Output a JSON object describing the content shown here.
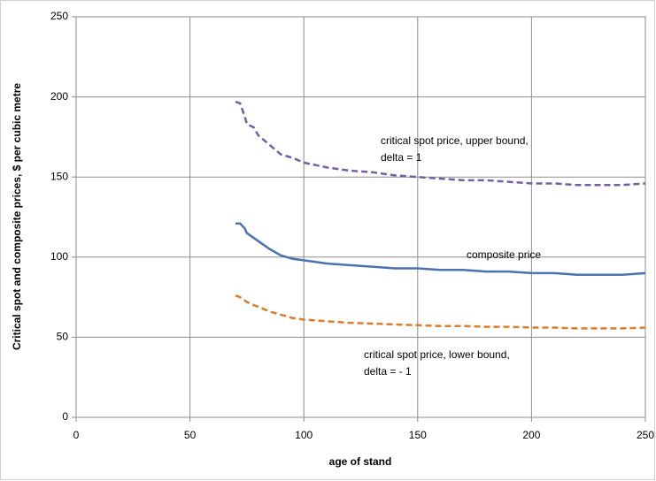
{
  "chart_data": {
    "type": "line",
    "x_label": "age of stand",
    "y_label": "Critical spot and composite prices, $ per cubic metre",
    "x": [
      70,
      72,
      74,
      75,
      78,
      80,
      85,
      90,
      95,
      100,
      110,
      120,
      130,
      140,
      150,
      160,
      170,
      180,
      190,
      200,
      210,
      220,
      230,
      240,
      250
    ],
    "series": [
      {
        "color": "#7060a8",
        "dash": true,
        "values": [
          197,
          196,
          188,
          183,
          181,
          176,
          170,
          164,
          162,
          159,
          156,
          154,
          153,
          151,
          150,
          149,
          148,
          148,
          147,
          146,
          146,
          145,
          145,
          145,
          146
        ]
      },
      {
        "color": "#4a72b0",
        "dash": false,
        "values": [
          121,
          121,
          118,
          115,
          112,
          110,
          105,
          101,
          99,
          98,
          96,
          95,
          94,
          93,
          93,
          92,
          92,
          91,
          91,
          90,
          90,
          89,
          89,
          89,
          90
        ]
      },
      {
        "color": "#e07b2a",
        "dash": true,
        "values": [
          76,
          75,
          73,
          72,
          70,
          69,
          66,
          64,
          62,
          61,
          60,
          59,
          58.5,
          58,
          57.5,
          57,
          57,
          56.5,
          56.5,
          56,
          56,
          55.5,
          55.5,
          55.5,
          56
        ]
      }
    ],
    "annotations": [
      [
        "critical spot price, upper bound,",
        "delta = 1"
      ],
      [
        "composite price"
      ],
      [
        "critical spot price, lower bound,",
        "delta = - 1"
      ]
    ],
    "xlim": [
      0,
      250
    ],
    "xticks": [
      0,
      50,
      100,
      150,
      200,
      250
    ],
    "ylim": [
      0,
      250
    ],
    "yticks": [
      0,
      50,
      100,
      150,
      200,
      250
    ],
    "grid": true
  }
}
